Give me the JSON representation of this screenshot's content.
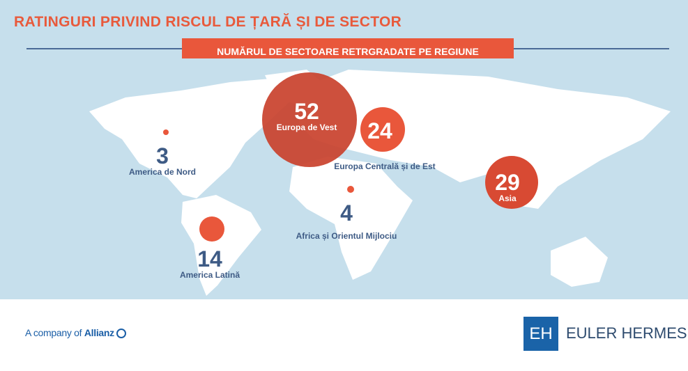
{
  "title": "RATINGURI PRIVIND RISCUL DE ȚARĂ ȘI DE SECTOR",
  "subtitle": "NUMĂRUL DE SECTOARE RETRGRADATE PE REGIUNE",
  "colors": {
    "accent": "#e9573b",
    "background": "#c6dfec",
    "label": "#3e5b85"
  },
  "regions": [
    {
      "name": "Europa de Vest",
      "value": "52"
    },
    {
      "name": "Europa Centrală și de Est",
      "value": "24"
    },
    {
      "name": "Asia",
      "value": "29"
    },
    {
      "name": "America de Nord",
      "value": "3"
    },
    {
      "name": "Africa și Orientul Mijlociu",
      "value": "4"
    },
    {
      "name": "America Latină",
      "value": "14"
    }
  ],
  "footer": {
    "company_prefix": "A company of",
    "company": "Allianz",
    "logo_mark": "EH",
    "brand": "EULER HERMES"
  }
}
